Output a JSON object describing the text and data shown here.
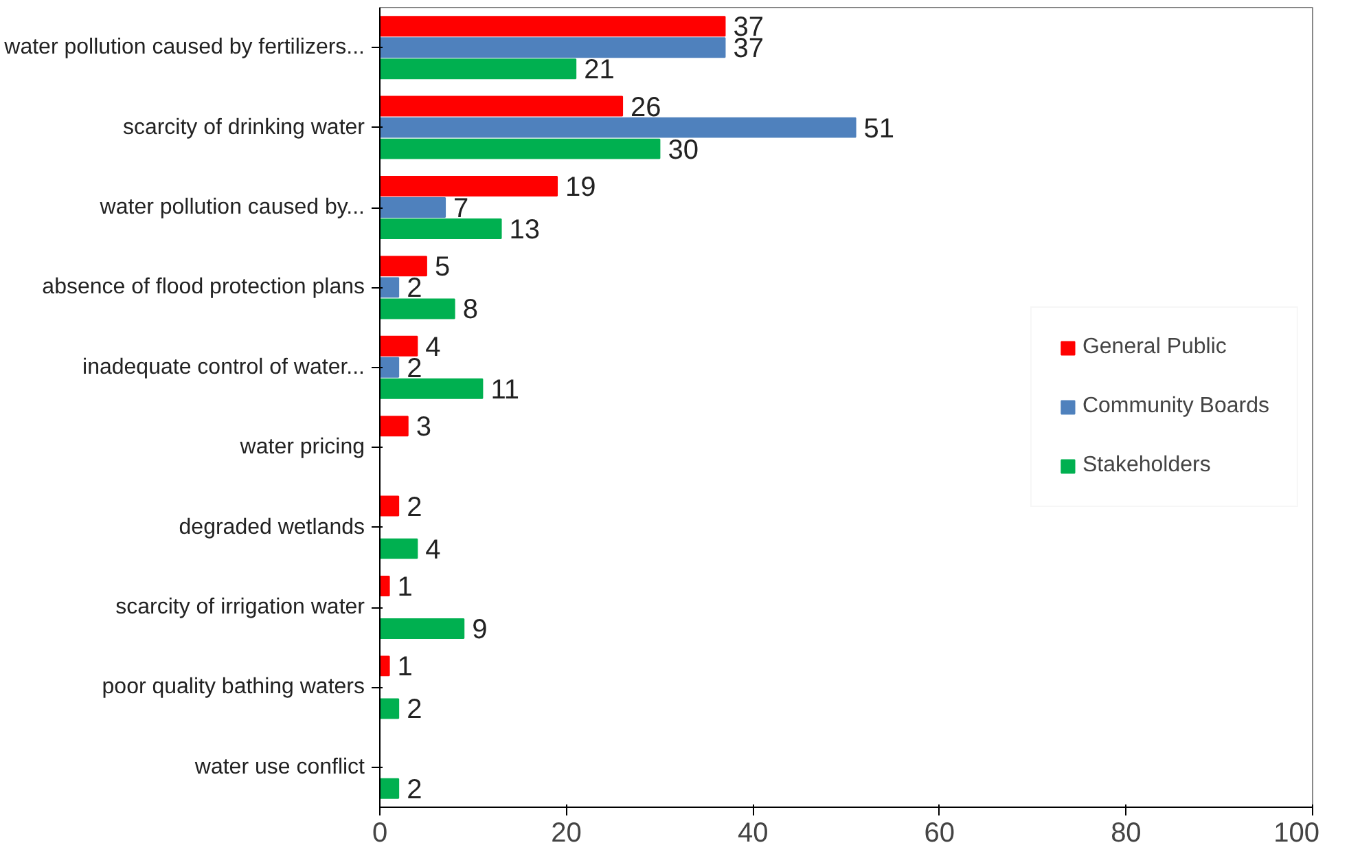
{
  "chart_data": {
    "type": "bar",
    "orientation": "horizontal",
    "categories": [
      "water pollution caused by fertilizers...",
      "scarcity of drinking water",
      "water pollution caused by...",
      "absence of flood protection plans",
      "inadequate control of water...",
      "water pricing",
      "degraded wetlands",
      "scarcity of irrigation water",
      "poor quality bathing waters",
      "water use conflict"
    ],
    "series": [
      {
        "name": "General Public",
        "color": "#ff0000",
        "values": [
          37,
          26,
          19,
          5,
          4,
          3,
          2,
          1,
          1,
          null
        ]
      },
      {
        "name": "Community Boards",
        "color": "#4f81bd",
        "values": [
          37,
          51,
          7,
          2,
          2,
          null,
          null,
          null,
          null,
          null
        ]
      },
      {
        "name": "Stakeholders",
        "color": "#00b050",
        "values": [
          21,
          30,
          13,
          8,
          11,
          null,
          4,
          9,
          2,
          2
        ]
      }
    ],
    "xlim": [
      0,
      100
    ],
    "xticks": [
      0,
      20,
      40,
      60,
      80,
      100
    ],
    "grid": false,
    "legend": "right",
    "data_labels": true
  }
}
